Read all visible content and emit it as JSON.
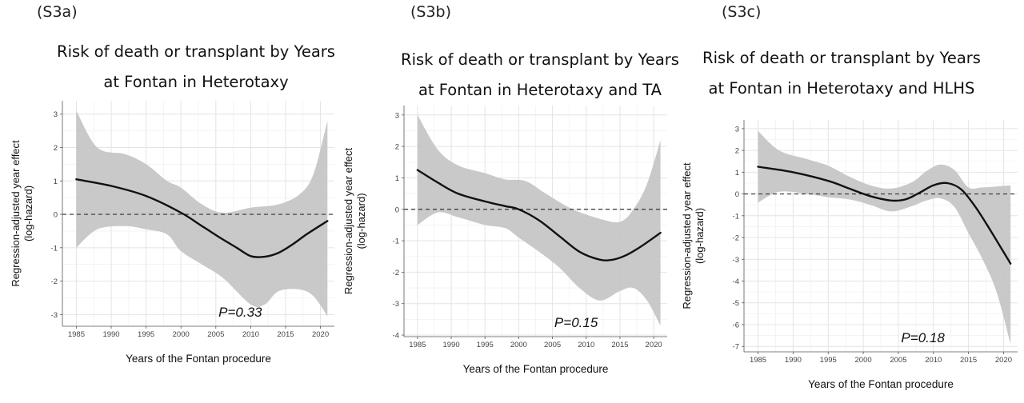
{
  "chart_data": [
    {
      "type": "line",
      "panel_tag": "(S3a)",
      "title_line1": "Risk of death or transplant by Years",
      "title_line2": "at Fontan in Heterotaxy",
      "xlabel": "Years of the Fontan procedure",
      "ylabel_line1": "Regression-adjusted year effect",
      "ylabel_line2": "(log-hazard)",
      "xlim": [
        1983,
        2022
      ],
      "ylim": [
        -3.35,
        3.4
      ],
      "x_ticks": [
        1985,
        1990,
        1995,
        2000,
        2005,
        2010,
        2015,
        2020
      ],
      "y_ticks": [
        3,
        2,
        1,
        0,
        -1,
        -2,
        -3
      ],
      "reference_line": 0,
      "annotation": "P=0.33",
      "estimate": {
        "x": [
          1985,
          1990,
          1995,
          2000,
          2003,
          2006,
          2008,
          2010,
          2012,
          2014,
          2016,
          2018,
          2021
        ],
        "y": [
          1.05,
          0.85,
          0.55,
          0.05,
          -0.35,
          -0.75,
          -1.0,
          -1.25,
          -1.27,
          -1.15,
          -0.9,
          -0.6,
          -0.2
        ]
      },
      "ci_upper": {
        "x": [
          1985,
          1988,
          1992,
          1995,
          1998,
          2000,
          2003,
          2006,
          2010,
          2014,
          2017,
          2019,
          2021
        ],
        "y": [
          3.1,
          2.0,
          1.8,
          1.5,
          1.0,
          0.8,
          0.3,
          0.05,
          0.2,
          0.3,
          0.6,
          1.2,
          2.8
        ]
      },
      "ci_lower": {
        "x": [
          1985,
          1988,
          1992,
          1995,
          1998,
          2000,
          2003,
          2006,
          2010,
          2012,
          2014,
          2017,
          2019,
          2021
        ],
        "y": [
          -1.0,
          -0.45,
          -0.35,
          -0.45,
          -0.6,
          -1.1,
          -1.5,
          -1.9,
          -2.7,
          -2.7,
          -2.3,
          -2.25,
          -2.45,
          -3.05
        ]
      }
    },
    {
      "type": "line",
      "panel_tag": "(S3b)",
      "title_line1": "Risk of death or transplant by Years",
      "title_line2": "at Fontan in Heterotaxy and TA",
      "xlabel": "Years of the Fontan procedure",
      "ylabel_line1": "Regression-adjusted year effect",
      "ylabel_line2": "(log-hazard)",
      "xlim": [
        1983,
        2022
      ],
      "ylim": [
        -4.05,
        3.3
      ],
      "x_ticks": [
        1985,
        1990,
        1995,
        2000,
        2005,
        2010,
        2015,
        2020
      ],
      "y_ticks": [
        3,
        2,
        1,
        0,
        -1,
        -2,
        -3,
        -4
      ],
      "reference_line": 0,
      "annotation": "P=0.15",
      "estimate": {
        "x": [
          1985,
          1988,
          1991,
          1995,
          1998,
          2000,
          2003,
          2006,
          2009,
          2012,
          2014,
          2016,
          2018,
          2021
        ],
        "y": [
          1.25,
          0.85,
          0.5,
          0.25,
          0.1,
          0.0,
          -0.35,
          -0.85,
          -1.35,
          -1.6,
          -1.6,
          -1.45,
          -1.2,
          -0.75
        ]
      },
      "ci_upper": {
        "x": [
          1985,
          1988,
          1991,
          1995,
          1998,
          2001,
          2004,
          2008,
          2012,
          2015,
          2017,
          2019,
          2021
        ],
        "y": [
          3.0,
          1.9,
          1.4,
          1.15,
          0.95,
          0.9,
          0.5,
          0.0,
          -0.3,
          -0.4,
          0.0,
          0.8,
          2.2
        ]
      },
      "ci_lower": {
        "x": [
          1985,
          1988,
          1991,
          1995,
          1998,
          2000,
          2003,
          2006,
          2009,
          2012,
          2015,
          2017,
          2019,
          2021
        ],
        "y": [
          -0.5,
          -0.1,
          -0.25,
          -0.5,
          -0.6,
          -0.9,
          -1.35,
          -1.85,
          -2.5,
          -2.9,
          -2.6,
          -2.5,
          -2.9,
          -3.7
        ]
      }
    },
    {
      "type": "line",
      "panel_tag": "(S3c)",
      "title_line1": "Risk of death or transplant by Years",
      "title_line2": "at Fontan in Heterotaxy and HLHS",
      "xlabel": "Years of the Fontan procedure",
      "ylabel_line1": "Regression-adjusted year effect",
      "ylabel_line2": "(log-hazard)",
      "xlim": [
        1983,
        2022
      ],
      "ylim": [
        -7.25,
        3.4
      ],
      "x_ticks": [
        1985,
        1990,
        1995,
        2000,
        2005,
        2010,
        2015,
        2020
      ],
      "y_ticks": [
        3,
        2,
        1,
        0,
        -1,
        -2,
        -3,
        -4,
        -5,
        -6,
        -7
      ],
      "reference_line": 0,
      "annotation": "P=0.18",
      "estimate": {
        "x": [
          1985,
          1990,
          1995,
          1998,
          2001,
          2004,
          2006,
          2008,
          2010,
          2012,
          2014,
          2016,
          2018,
          2021
        ],
        "y": [
          1.25,
          1.0,
          0.6,
          0.25,
          -0.1,
          -0.3,
          -0.25,
          0.05,
          0.4,
          0.5,
          0.2,
          -0.6,
          -1.6,
          -3.2
        ]
      },
      "ci_upper": {
        "x": [
          1985,
          1988,
          1992,
          1995,
          1998,
          2001,
          2004,
          2007,
          2009,
          2011,
          2013,
          2015,
          2017,
          2021
        ],
        "y": [
          2.9,
          2.0,
          1.6,
          1.3,
          0.8,
          0.4,
          0.25,
          0.55,
          1.05,
          1.35,
          1.1,
          0.3,
          0.3,
          0.4
        ]
      },
      "ci_lower": {
        "x": [
          1985,
          1988,
          1992,
          1995,
          1998,
          2001,
          2004,
          2007,
          2009,
          2011,
          2013,
          2015,
          2017,
          2019,
          2021
        ],
        "y": [
          -0.4,
          0.1,
          0.0,
          -0.15,
          -0.25,
          -0.5,
          -0.8,
          -0.55,
          -0.3,
          -0.2,
          -0.6,
          -1.8,
          -3.0,
          -4.5,
          -6.9
        ]
      }
    }
  ]
}
